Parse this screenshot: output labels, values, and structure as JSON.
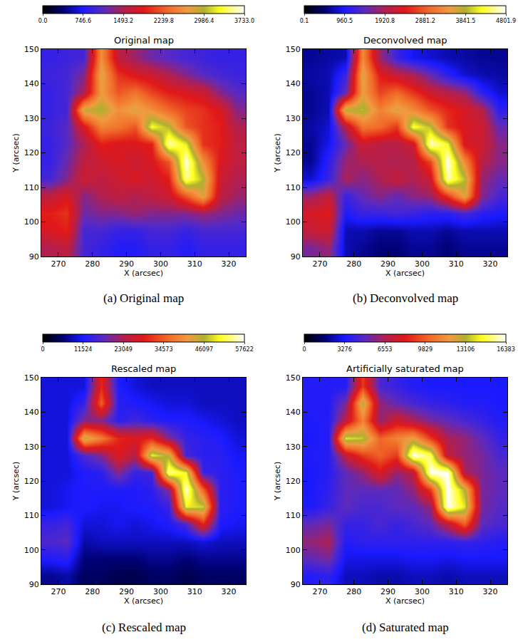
{
  "chart_data": [
    {
      "type": "heatmap",
      "title": "Original map",
      "caption": "(a) Original map",
      "xlabel": "X (arcsec)",
      "ylabel": "Y (arcsec)",
      "x": [
        267.5,
        272.5,
        277.5,
        282.5,
        287.5,
        292.5,
        297.5,
        302.5,
        307.5,
        312.5,
        317.5,
        322.5
      ],
      "y": [
        92.5,
        97.5,
        102.5,
        107.5,
        112.5,
        117.5,
        122.5,
        127.5,
        132.5,
        137.5,
        142.5,
        147.5
      ],
      "z": [
        [
          1500,
          1600,
          1000,
          900,
          800,
          800,
          900,
          900,
          800,
          900,
          900,
          900
        ],
        [
          1800,
          1900,
          1000,
          1000,
          900,
          900,
          1000,
          1000,
          900,
          1000,
          1000,
          1000
        ],
        [
          1900,
          2000,
          1200,
          1300,
          1300,
          1400,
          1300,
          1300,
          1300,
          1400,
          1300,
          1200
        ],
        [
          1600,
          1800,
          1300,
          1500,
          1600,
          1500,
          1600,
          1700,
          2200,
          2800,
          1600,
          1400
        ],
        [
          1000,
          1300,
          1700,
          1600,
          1700,
          1800,
          1700,
          1900,
          3500,
          3000,
          1700,
          1500
        ],
        [
          900,
          1200,
          1600,
          1700,
          1800,
          1700,
          1800,
          2200,
          3700,
          2600,
          1800,
          1600
        ],
        [
          900,
          1100,
          1500,
          1900,
          1800,
          1800,
          1900,
          3600,
          3200,
          2000,
          1900,
          1600
        ],
        [
          950,
          1100,
          1800,
          2500,
          2400,
          2200,
          3300,
          3000,
          2200,
          2000,
          1900,
          1500
        ],
        [
          900,
          1000,
          2900,
          3000,
          2600,
          2800,
          2600,
          2300,
          2100,
          2000,
          1800,
          1300
        ],
        [
          900,
          1000,
          1500,
          2700,
          2200,
          2400,
          2100,
          1900,
          1800,
          1700,
          1300,
          1100
        ],
        [
          950,
          1000,
          1300,
          2800,
          2000,
          1800,
          1700,
          1500,
          1300,
          1100,
          1000,
          950
        ],
        [
          900,
          950,
          1000,
          2600,
          1600,
          1400,
          1200,
          1100,
          1000,
          950,
          900,
          900
        ]
      ],
      "xlim": [
        265,
        325
      ],
      "xticks": [
        270,
        280,
        290,
        300,
        310,
        320
      ],
      "ylim": [
        90,
        150
      ],
      "yticks": [
        90,
        100,
        110,
        120,
        130,
        140,
        150
      ],
      "colorbar": {
        "range": [
          0,
          3733
        ],
        "ticks": [
          {
            "value": 0,
            "label": "0.0"
          },
          746.6,
          1493.2,
          2239.8,
          2986.4,
          {
            "value": 3733,
            "label": "3733.0"
          }
        ]
      }
    },
    {
      "type": "heatmap",
      "title": "Deconvolved map",
      "caption": "(b) Deconvolved map",
      "xlabel": "X (arcsec)",
      "ylabel": "Y (arcsec)",
      "x": [
        267.5,
        272.5,
        277.5,
        282.5,
        287.5,
        292.5,
        297.5,
        302.5,
        307.5,
        312.5,
        317.5,
        322.5
      ],
      "y": [
        92.5,
        97.5,
        102.5,
        107.5,
        112.5,
        117.5,
        122.5,
        127.5,
        132.5,
        137.5,
        142.5,
        147.5
      ],
      "z": [
        [
          1600,
          1800,
          700,
          600,
          500,
          500,
          600,
          600,
          500,
          600,
          600,
          600
        ],
        [
          2100,
          2200,
          700,
          700,
          600,
          600,
          700,
          700,
          600,
          700,
          700,
          700
        ],
        [
          2300,
          2400,
          1000,
          1200,
          1200,
          1300,
          1200,
          1100,
          1100,
          1300,
          1100,
          1000
        ],
        [
          1800,
          2100,
          1200,
          1500,
          1700,
          1500,
          1700,
          1800,
          2600,
          3600,
          1700,
          1300
        ],
        [
          800,
          1200,
          1900,
          1700,
          1900,
          2100,
          1900,
          2200,
          4600,
          3900,
          1800,
          1500
        ],
        [
          600,
          1100,
          1800,
          1900,
          2000,
          1900,
          2000,
          2700,
          4800,
          3300,
          2000,
          1700
        ],
        [
          600,
          900,
          1500,
          2200,
          2000,
          2000,
          2200,
          4700,
          4200,
          2300,
          2200,
          1700
        ],
        [
          650,
          800,
          2000,
          3100,
          3000,
          2600,
          4300,
          3900,
          2600,
          2300,
          2200,
          1500
        ],
        [
          600,
          700,
          3800,
          3900,
          3200,
          3600,
          3300,
          2800,
          2500,
          2300,
          2000,
          1100
        ],
        [
          600,
          700,
          1500,
          3500,
          2700,
          3000,
          2600,
          2200,
          2000,
          1800,
          1100,
          800
        ],
        [
          650,
          700,
          1200,
          3600,
          2400,
          2100,
          1900,
          1500,
          1100,
          800,
          700,
          650
        ],
        [
          600,
          650,
          700,
          3300,
          1800,
          1200,
          900,
          800,
          700,
          650,
          600,
          600
        ]
      ],
      "xlim": [
        265,
        325
      ],
      "xticks": [
        270,
        280,
        290,
        300,
        310,
        320
      ],
      "ylim": [
        90,
        150
      ],
      "yticks": [
        90,
        100,
        110,
        120,
        130,
        140,
        150
      ],
      "colorbar": {
        "range": [
          0.1,
          4801.9
        ],
        "ticks": [
          0.1,
          960.5,
          1920.8,
          2881.2,
          3841.5,
          4801.9
        ]
      }
    },
    {
      "type": "heatmap",
      "title": "Rescaled map",
      "caption": "(c) Rescaled map",
      "xlabel": "X (arcsec)",
      "ylabel": "Y (arcsec)",
      "x": [
        267.5,
        272.5,
        277.5,
        282.5,
        287.5,
        292.5,
        297.5,
        302.5,
        307.5,
        312.5,
        317.5,
        322.5
      ],
      "y": [
        92.5,
        97.5,
        102.5,
        107.5,
        112.5,
        117.5,
        122.5,
        127.5,
        132.5,
        137.5,
        142.5,
        147.5
      ],
      "z": [
        [
          7000,
          8000,
          5000,
          5000,
          4000,
          4000,
          5000,
          5000,
          4000,
          5000,
          5000,
          5000
        ],
        [
          12000,
          13000,
          6000,
          6000,
          6000,
          6000,
          7000,
          7000,
          6000,
          7000,
          7000,
          7000
        ],
        [
          16000,
          17000,
          8000,
          9000,
          9000,
          9000,
          9000,
          9000,
          9000,
          10000,
          9000,
          9000
        ],
        [
          14000,
          15000,
          10000,
          10000,
          11000,
          10000,
          11000,
          12000,
          16000,
          30000,
          12000,
          11000
        ],
        [
          10000,
          11000,
          12000,
          11000,
          11000,
          12000,
          12000,
          14000,
          50000,
          48000,
          13000,
          12000
        ],
        [
          10000,
          11000,
          12000,
          12000,
          12000,
          12000,
          13000,
          20000,
          57000,
          35000,
          13000,
          12000
        ],
        [
          10000,
          10000,
          12000,
          13000,
          20000,
          14000,
          15000,
          55000,
          50000,
          14000,
          13000,
          12000
        ],
        [
          10000,
          10000,
          16000,
          20000,
          28000,
          24000,
          50000,
          45000,
          15000,
          13000,
          13000,
          11000
        ],
        [
          10000,
          10000,
          45000,
          38000,
          30000,
          28000,
          30000,
          20000,
          14000,
          13000,
          12000,
          10000
        ],
        [
          10000,
          10000,
          20000,
          20000,
          13000,
          15000,
          13000,
          12000,
          12000,
          11000,
          10000,
          9000
        ],
        [
          10000,
          10000,
          14000,
          35000,
          13000,
          12000,
          11000,
          10000,
          10000,
          9000,
          9000,
          9000
        ],
        [
          10000,
          10000,
          10000,
          30000,
          12000,
          10000,
          9000,
          9000,
          9000,
          9000,
          9000,
          9000
        ]
      ],
      "xlim": [
        265,
        325
      ],
      "xticks": [
        270,
        280,
        290,
        300,
        310,
        320
      ],
      "ylim": [
        90,
        150
      ],
      "yticks": [
        90,
        100,
        110,
        120,
        130,
        140,
        150
      ],
      "colorbar": {
        "range": [
          0,
          57622
        ],
        "ticks": [
          0,
          11524,
          23049,
          34573,
          46097,
          57622
        ]
      }
    },
    {
      "type": "heatmap",
      "title": "Artificially saturated map",
      "caption": "(d) Saturated map",
      "xlabel": "X (arcsec)",
      "ylabel": "Y (arcsec)",
      "x": [
        267.5,
        272.5,
        277.5,
        282.5,
        287.5,
        292.5,
        297.5,
        302.5,
        307.5,
        312.5,
        317.5,
        322.5
      ],
      "y": [
        92.5,
        97.5,
        102.5,
        107.5,
        112.5,
        117.5,
        122.5,
        127.5,
        132.5,
        137.5,
        142.5,
        147.5
      ],
      "z": [
        [
          3500,
          3800,
          2500,
          2500,
          2300,
          2300,
          2500,
          2500,
          2300,
          2500,
          2500,
          2500
        ],
        [
          5000,
          5500,
          3000,
          3000,
          3000,
          3000,
          3200,
          3200,
          3000,
          3200,
          3200,
          3200
        ],
        [
          6000,
          6500,
          3500,
          3800,
          3800,
          3800,
          3800,
          3800,
          3800,
          4000,
          3800,
          3600
        ],
        [
          5000,
          5500,
          4000,
          4000,
          4500,
          4000,
          4500,
          5000,
          7000,
          10000,
          5000,
          4500
        ],
        [
          3400,
          4000,
          5000,
          4500,
          4500,
          5000,
          5000,
          6000,
          16383,
          14000,
          5500,
          4800
        ],
        [
          3300,
          3800,
          5000,
          5000,
          5000,
          5000,
          6000,
          9000,
          16383,
          13000,
          5500,
          5000
        ],
        [
          3300,
          3600,
          5000,
          6000,
          8000,
          6000,
          7000,
          16383,
          16383,
          6500,
          5500,
          5000
        ],
        [
          3400,
          3600,
          7000,
          9000,
          10000,
          9000,
          16383,
          15000,
          7000,
          6000,
          5500,
          4500
        ],
        [
          3300,
          3500,
          14000,
          13500,
          10000,
          11000,
          12000,
          9000,
          6500,
          6000,
          5000,
          4000
        ],
        [
          3400,
          3500,
          7000,
          11000,
          6000,
          7500,
          6500,
          5500,
          5000,
          4500,
          4000,
          3500
        ],
        [
          3500,
          3500,
          5500,
          13000,
          6000,
          5000,
          4500,
          4000,
          3800,
          3500,
          3500,
          3300
        ],
        [
          3500,
          3500,
          3500,
          9000,
          4500,
          4000,
          3500,
          3300,
          3300,
          3300,
          3300,
          3300
        ]
      ],
      "xlim": [
        265,
        325
      ],
      "xticks": [
        270,
        280,
        290,
        300,
        310,
        320
      ],
      "ylim": [
        90,
        150
      ],
      "yticks": [
        90,
        100,
        110,
        120,
        130,
        140,
        150
      ],
      "colorbar": {
        "range": [
          0,
          16383
        ],
        "ticks": [
          0,
          3276,
          6553,
          9829,
          13106,
          16383
        ]
      }
    }
  ]
}
